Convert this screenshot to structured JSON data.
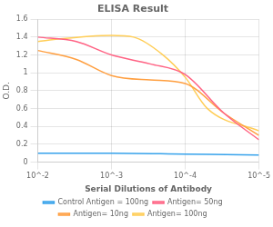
{
  "chart_data": {
    "type": "line",
    "title": "ELISA Result",
    "xlabel": "Serial Dilutions of Antibody",
    "ylabel": "O.D.",
    "log": "x",
    "xlim": [
      0.01,
      1e-05
    ],
    "xticks": [
      {
        "value": 0.01,
        "label": "10^-2"
      },
      {
        "value": 0.001,
        "label": "10^-3"
      },
      {
        "value": 0.0001,
        "label": "10^-4"
      },
      {
        "value": 1e-05,
        "label": "10^-5"
      }
    ],
    "ylim": [
      0,
      1.6
    ],
    "yticks": [
      0,
      0.2,
      0.4,
      0.6,
      0.8,
      1,
      1.2,
      1.4,
      1.6
    ],
    "grid": true,
    "legend": "bottom",
    "series": [
      {
        "name": "Control Antigen = 100ng",
        "x": [
          0.01,
          0.001,
          0.0001,
          1e-05
        ],
        "values": [
          0.1,
          0.1,
          0.09,
          0.08
        ]
      },
      {
        "name": "Antigen= 50ng",
        "x": [
          0.01,
          0.003,
          0.001,
          0.0003,
          0.0001,
          3e-05,
          1e-05
        ],
        "values": [
          1.4,
          1.35,
          1.2,
          1.1,
          0.98,
          0.55,
          0.25
        ]
      },
      {
        "name": "Antigen= 10ng",
        "x": [
          0.01,
          0.003,
          0.001,
          0.0003,
          0.0001,
          3e-05,
          1e-05
        ],
        "values": [
          1.25,
          1.15,
          0.97,
          0.92,
          0.88,
          0.55,
          0.3
        ]
      },
      {
        "name": "Antigen= 100ng",
        "x": [
          0.01,
          0.005,
          0.002,
          0.001,
          0.0005,
          0.0002,
          0.0001,
          5e-05,
          1e-05
        ],
        "values": [
          1.35,
          1.38,
          1.41,
          1.42,
          1.4,
          1.2,
          0.95,
          0.6,
          0.35
        ]
      }
    ]
  }
}
